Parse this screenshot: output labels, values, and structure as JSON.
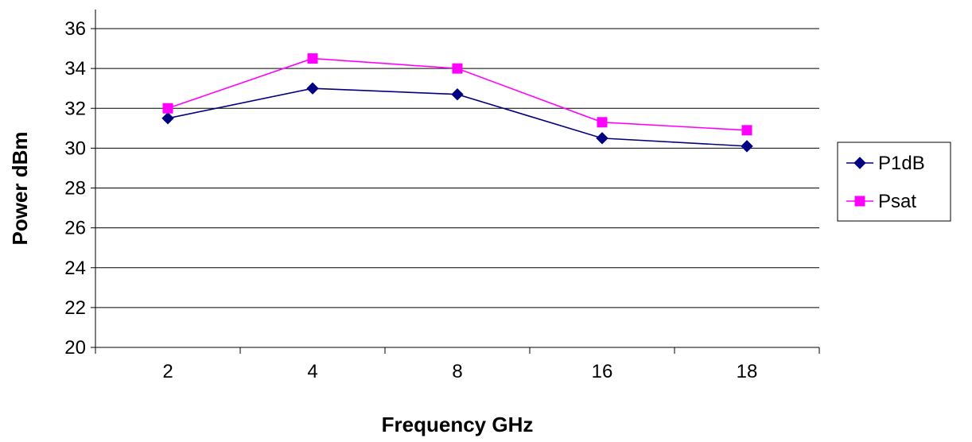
{
  "chart_data": {
    "type": "line",
    "xlabel": "Frequency GHz",
    "ylabel": "Power dBm",
    "categories": [
      "2",
      "4",
      "8",
      "16",
      "18"
    ],
    "ylim": [
      20,
      36
    ],
    "yticks": [
      20,
      22,
      24,
      26,
      28,
      30,
      32,
      34,
      36
    ],
    "grid": true,
    "legend_position": "right",
    "series": [
      {
        "name": "P1dB",
        "values": [
          31.5,
          33.0,
          32.7,
          30.5,
          30.1
        ],
        "color": "#000080",
        "marker": "diamond"
      },
      {
        "name": "Psat",
        "values": [
          32.0,
          34.5,
          34.0,
          31.3,
          30.9
        ],
        "color": "#ff00ff",
        "marker": "square"
      }
    ]
  }
}
